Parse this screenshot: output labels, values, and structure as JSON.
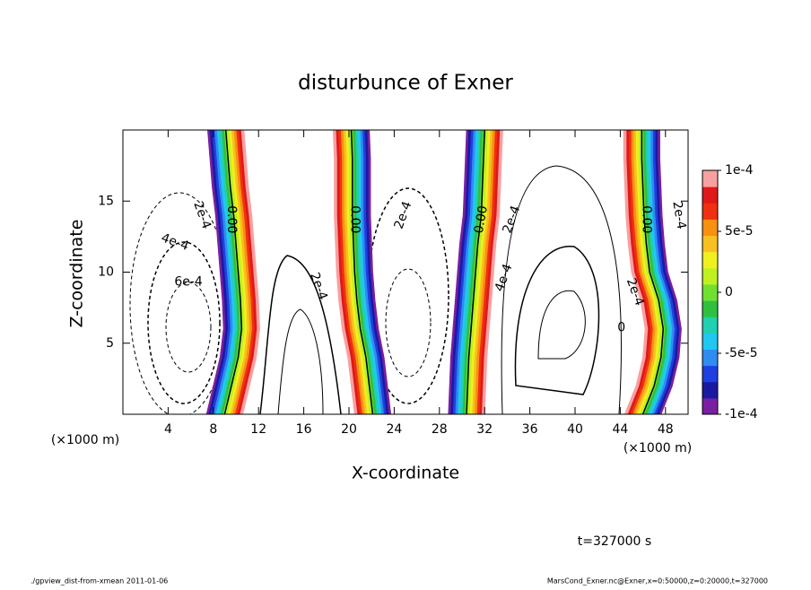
{
  "chart_data": {
    "type": "contour",
    "title": "disturbunce of Exner",
    "xlabel": "X-coordinate",
    "ylabel": "Z-coordinate",
    "x_unit": "(×1000 m)",
    "xlim": [
      0,
      50
    ],
    "ylim": [
      0,
      20
    ],
    "xticks": [
      4,
      8,
      12,
      16,
      20,
      24,
      28,
      32,
      36,
      40,
      44,
      48
    ],
    "yticks": [
      5,
      10,
      15
    ],
    "z": [
      0,
      2,
      4,
      6,
      8,
      10,
      12,
      14,
      16,
      18,
      20
    ],
    "zero_lines": [
      {
        "x": [
          9.0,
          9.6,
          10.2,
          10.5,
          10.4,
          10.2,
          10.0,
          9.8,
          9.5,
          9.3,
          9.1
        ]
      },
      {
        "x": [
          22.1,
          21.8,
          21.5,
          21.0,
          20.7,
          20.5,
          20.4,
          20.3,
          20.3,
          20.3,
          20.2
        ]
      },
      {
        "x": [
          30.4,
          30.5,
          30.6,
          30.8,
          31.0,
          31.2,
          31.4,
          31.7,
          31.8,
          31.9,
          32.0
        ]
      },
      {
        "x": [
          46.0,
          47.0,
          47.6,
          47.8,
          47.4,
          46.6,
          46.3,
          46.1,
          46.0,
          45.9,
          45.9
        ]
      }
    ],
    "contour_labels": [
      {
        "text": "2e-4",
        "x": 7.0,
        "y": 14.0
      },
      {
        "text": "4e-4",
        "x": 4.6,
        "y": 12.1
      },
      {
        "text": "6e-4",
        "x": 5.8,
        "y": 9.3
      },
      {
        "text": "0.00",
        "x": 9.6,
        "y": 13.7
      },
      {
        "text": "0.00",
        "x": 20.5,
        "y": 13.7
      },
      {
        "text": "2e-4",
        "x": 17.3,
        "y": 9.0
      },
      {
        "text": "2e-4",
        "x": 24.8,
        "y": 14.0
      },
      {
        "text": "0.00",
        "x": 31.7,
        "y": 13.7
      },
      {
        "text": "2e-4",
        "x": 34.4,
        "y": 13.7
      },
      {
        "text": "4e-4",
        "x": 33.7,
        "y": 9.6
      },
      {
        "text": "0",
        "x": 44.1,
        "y": 6.1
      },
      {
        "text": "2e-4",
        "x": 45.3,
        "y": 8.6
      },
      {
        "text": "0.00",
        "x": 46.3,
        "y": 13.7
      },
      {
        "text": "2e-4",
        "x": 49.2,
        "y": 14.0
      }
    ],
    "colorbar": {
      "lim": [
        -0.0001,
        0.0001
      ],
      "ticks": [
        {
          "value": 0.0001,
          "label": "1e-4"
        },
        {
          "value": 5e-05,
          "label": "5e-5"
        },
        0,
        {
          "value": -5e-05,
          "label": "-5e-5"
        },
        {
          "value": -0.0001,
          "label": "-1e-4"
        }
      ],
      "colors": [
        "#7a1fa2",
        "#1a1aa0",
        "#1f3fe0",
        "#2f8cf0",
        "#20c8f0",
        "#20d0b0",
        "#30c040",
        "#70e030",
        "#c0f020",
        "#f0f020",
        "#f8c020",
        "#f89010",
        "#f03010",
        "#e01818",
        "#f8a0a0"
      ]
    },
    "time_label": "t=327000 s",
    "footer_left": "./gpview_dist-from-xmean  2011-01-06",
    "footer_right": "MarsCond_Exner.nc@Exner,x=0:50000,z=0:20000,t=327000"
  }
}
